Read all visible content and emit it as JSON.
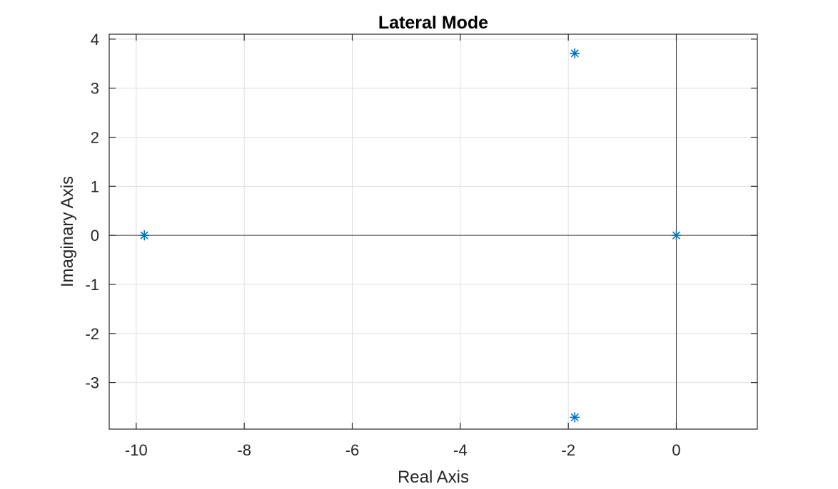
{
  "chart_data": {
    "type": "scatter",
    "title": "Lateral Mode",
    "xlabel": "Real Axis",
    "ylabel": "Imaginary Axis",
    "xlim": [
      -10.5,
      1.5
    ],
    "ylim": [
      -3.95,
      4.1
    ],
    "xticks": [
      -10,
      -8,
      -6,
      -4,
      -2,
      0
    ],
    "yticks": [
      -3,
      -2,
      -1,
      0,
      1,
      2,
      3,
      4
    ],
    "xtick_labels": [
      "-10",
      "-8",
      "-6",
      "-4",
      "-2",
      "0"
    ],
    "ytick_labels": [
      "-3",
      "-2",
      "-1",
      "0",
      "1",
      "2",
      "3",
      "4"
    ],
    "grid": true,
    "marker": "asterisk",
    "marker_color": "#0072bd",
    "series": [
      {
        "x": [
          -9.85,
          -1.88,
          -1.88,
          0.0
        ],
        "y": [
          0.0,
          3.71,
          -3.71,
          0.0
        ]
      }
    ]
  }
}
